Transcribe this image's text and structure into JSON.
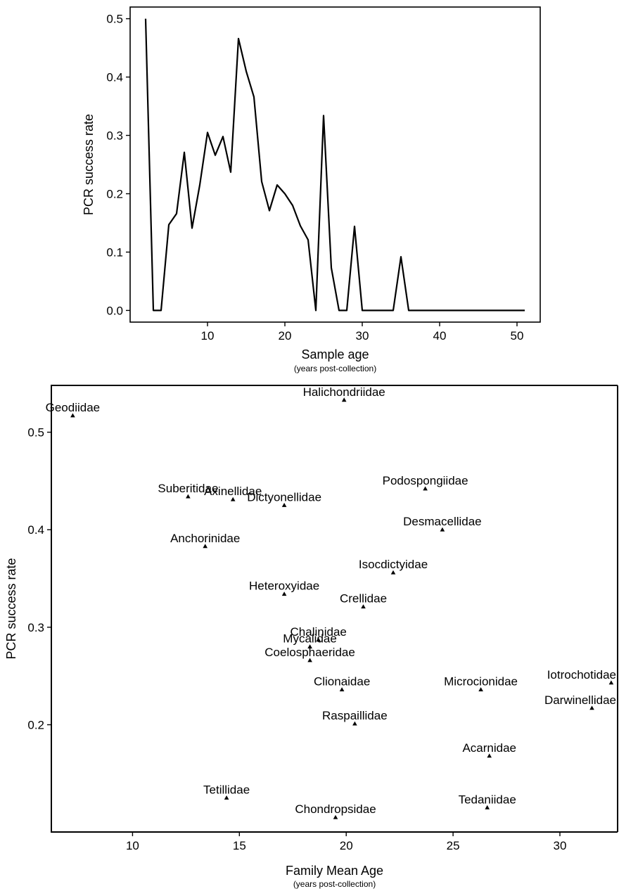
{
  "chart_data": [
    {
      "type": "line",
      "xlabel": "Sample age",
      "xlabel_sub": "(years post-collection)",
      "ylabel": "PCR success rate",
      "xlim": [
        0,
        53
      ],
      "ylim": [
        -0.02,
        0.52
      ],
      "xticks": [
        10,
        20,
        30,
        40,
        50
      ],
      "yticks": [
        0.0,
        0.1,
        0.2,
        0.3,
        0.4,
        0.5
      ],
      "ytick_labels": [
        "0.0",
        "0.1",
        "0.2",
        "0.3",
        "0.4",
        "0.5"
      ],
      "grid": false,
      "series": [
        {
          "x": [
            2,
            3,
            4,
            5,
            6,
            7,
            8,
            9,
            10,
            11,
            12,
            13,
            14,
            15,
            16,
            17,
            18,
            19,
            20,
            21,
            22,
            23,
            24,
            25,
            26,
            27,
            28,
            29,
            30,
            31,
            32,
            33,
            34,
            35,
            36,
            37,
            38,
            39,
            40,
            41,
            42,
            43,
            44,
            45,
            46,
            47,
            48,
            49,
            50,
            51
          ],
          "values": [
            0.5,
            0,
            0,
            0.147,
            0.166,
            0.271,
            0.141,
            0.215,
            0.305,
            0.266,
            0.298,
            0.237,
            0.466,
            0.41,
            0.366,
            0.221,
            0.171,
            0.215,
            0.2,
            0.18,
            0.145,
            0.121,
            0,
            0.334,
            0.073,
            0,
            0,
            0.144,
            0,
            0,
            0,
            0,
            0,
            0.092,
            0,
            0,
            0,
            0,
            0,
            0,
            0,
            0,
            0,
            0,
            0,
            0,
            0,
            0,
            0,
            0
          ]
        }
      ]
    },
    {
      "type": "scatter",
      "xlabel": "Family Mean Age",
      "xlabel_sub": "(years post-collection)",
      "ylabel": "PCR success rate",
      "xlim": [
        6.2,
        32.7
      ],
      "ylim": [
        0.09,
        0.548
      ],
      "xticks": [
        10,
        15,
        20,
        25,
        30
      ],
      "yticks": [
        0.2,
        0.3,
        0.4,
        0.5
      ],
      "ytick_labels": [
        "0.2",
        "0.3",
        "0.4",
        "0.5"
      ],
      "grid": false,
      "points": [
        {
          "label": "Geodiidae",
          "x": 7.2,
          "y": 0.517
        },
        {
          "label": "Halichondriidae",
          "x": 19.9,
          "y": 0.533
        },
        {
          "label": "Suberitidae",
          "x": 12.6,
          "y": 0.434
        },
        {
          "label": "Axinellidae",
          "x": 14.7,
          "y": 0.431
        },
        {
          "label": "Dictyonellidae",
          "x": 17.1,
          "y": 0.425
        },
        {
          "label": "Podospongiidae",
          "x": 23.7,
          "y": 0.442
        },
        {
          "label": "Desmacellidae",
          "x": 24.5,
          "y": 0.4
        },
        {
          "label": "Anchorinidae",
          "x": 13.4,
          "y": 0.383
        },
        {
          "label": "Isocdictyidae",
          "x": 22.2,
          "y": 0.356
        },
        {
          "label": "Heteroxyidae",
          "x": 17.1,
          "y": 0.334
        },
        {
          "label": "Crellidae",
          "x": 20.8,
          "y": 0.321
        },
        {
          "label": "Chalinidae",
          "x": 18.7,
          "y": 0.287
        },
        {
          "label": "Mycalidae",
          "x": 18.3,
          "y": 0.28
        },
        {
          "label": "Coelosphaeridae",
          "x": 18.3,
          "y": 0.266
        },
        {
          "label": "Clionaidae",
          "x": 19.8,
          "y": 0.236
        },
        {
          "label": "Microcionidae",
          "x": 26.3,
          "y": 0.236
        },
        {
          "label": "Iotrochotidae",
          "x": 32.4,
          "y": 0.243
        },
        {
          "label": "Darwinellidae",
          "x": 31.5,
          "y": 0.217
        },
        {
          "label": "Raspaillidae",
          "x": 20.4,
          "y": 0.201
        },
        {
          "label": "Acarnidae",
          "x": 26.7,
          "y": 0.168
        },
        {
          "label": "Tetillidae",
          "x": 14.4,
          "y": 0.125
        },
        {
          "label": "Tedaniidae",
          "x": 26.6,
          "y": 0.115
        },
        {
          "label": "Chondropsidae",
          "x": 19.5,
          "y": 0.105
        }
      ]
    }
  ]
}
